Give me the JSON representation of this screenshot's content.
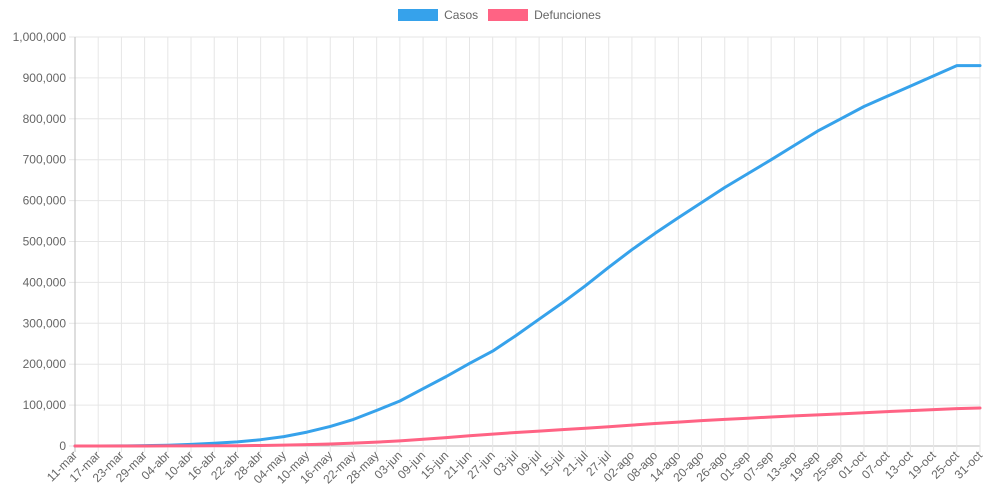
{
  "chart_data": {
    "type": "line",
    "title": "",
    "xlabel": "",
    "ylabel": "",
    "ylim": [
      0,
      1000000
    ],
    "yticks": [
      0,
      100000,
      200000,
      300000,
      400000,
      500000,
      600000,
      700000,
      800000,
      900000,
      1000000
    ],
    "ytick_labels": [
      "0",
      "100,000",
      "200,000",
      "300,000",
      "400,000",
      "500,000",
      "600,000",
      "700,000",
      "800,000",
      "900,000",
      "1,000,000"
    ],
    "xtick_labels": [
      "11-mar",
      "17-mar",
      "23-mar",
      "29-mar",
      "04-abr",
      "10-abr",
      "16-abr",
      "22-abr",
      "28-abr",
      "04-may",
      "10-may",
      "16-may",
      "22-may",
      "28-may",
      "03-jun",
      "09-jun",
      "15-jun",
      "21-jun",
      "27-jun",
      "03-jul",
      "09-jul",
      "15-jul",
      "21-jul",
      "27-jul",
      "02-ago",
      "08-ago",
      "14-ago",
      "20-ago",
      "26-ago",
      "01-sep",
      "07-sep",
      "13-sep",
      "19-sep",
      "25-sep",
      "01-oct",
      "07-oct",
      "13-oct",
      "19-oct",
      "25-oct",
      "31-oct"
    ],
    "grid": true,
    "legend_position": "top-center",
    "series": [
      {
        "name": "Casos",
        "color": "#36a2eb",
        "values": [
          0,
          100,
          300,
          900,
          2000,
          4000,
          6500,
          10000,
          15500,
          23000,
          34000,
          48000,
          65000,
          87000,
          110000,
          140000,
          170000,
          202000,
          232000,
          270000,
          310000,
          350000,
          392000,
          437000,
          480000,
          520000,
          558000,
          595000,
          632000,
          666000,
          700000,
          735000,
          770000,
          800000,
          830000,
          855000,
          880000,
          905000,
          930000,
          930000
        ]
      },
      {
        "name": "Defunciones",
        "color": "#ff6384",
        "values": [
          0,
          5,
          20,
          60,
          150,
          300,
          500,
          800,
          1200,
          2100,
          3500,
          5000,
          7000,
          9500,
          12500,
          16500,
          20500,
          25000,
          29000,
          33000,
          36500,
          40000,
          43500,
          47000,
          51000,
          55000,
          58500,
          62000,
          65000,
          68000,
          71000,
          73500,
          76000,
          78500,
          81500,
          84000,
          86500,
          89000,
          91500,
          93000
        ]
      }
    ]
  }
}
